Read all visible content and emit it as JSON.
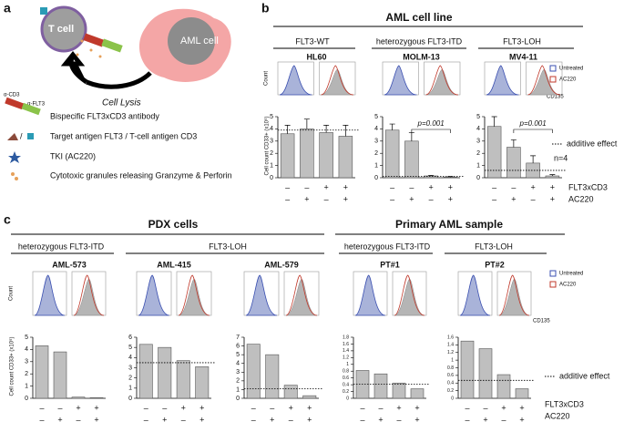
{
  "panel_labels": [
    "a",
    "b",
    "c"
  ],
  "diagram": {
    "t_cell": "T cell",
    "aml_cell": "AML cell",
    "lysis": "Cell Lysis",
    "anti_cd3": "α-CD3",
    "anti_flt3": "α-FLT3",
    "separator": "/",
    "legend": [
      "Bispecific FLT3xCD3 antibody",
      "Target antigen FLT3 / T-cell antigen CD3",
      "TKI (AC220)",
      "Cytotoxic granules releasing Granzyme & Perforin"
    ]
  },
  "panel_b": {
    "title": "AML cell line",
    "groups": [
      "FLT3-WT",
      "heterozygous FLT3-ITD",
      "FLT3-LOH"
    ],
    "untreated": "Untreated",
    "treated": "AC220",
    "count_label": "Count",
    "marker_label": "CD135",
    "y_label": "Cell count CD33+ (x10⁵)",
    "additive_label": "additive effect",
    "n": "n=4"
  },
  "panel_c": {
    "titles": [
      "PDX cells",
      "Primary AML sample"
    ],
    "groups": [
      "heterozygous FLT3-ITD",
      "FLT3-LOH",
      "heterozygous FLT3-ITD",
      "FLT3-LOH"
    ],
    "untreated": "Untreated",
    "treated": "AC220",
    "count_label": "Count",
    "marker_label": "CD135",
    "y_label": "Cell count CD33+ (x10⁵)",
    "additive_label": "additive effect"
  },
  "treatments": [
    {
      "label": "FLT3xCD3",
      "signs": [
        "–",
        "–",
        "+",
        "+"
      ]
    },
    {
      "label": "AC220",
      "signs": [
        "–",
        "+",
        "–",
        "+"
      ]
    }
  ],
  "chart_data": [
    {
      "type": "bar",
      "title": "HL60",
      "values": [
        3.6,
        4.0,
        3.7,
        3.4
      ],
      "errors": [
        0.7,
        0.8,
        0.6,
        0.9
      ],
      "additive_effect": 3.9,
      "ylim": [
        0,
        5
      ],
      "yticks": [
        0,
        1,
        2,
        3,
        4,
        5
      ],
      "color": "#bfbfbf"
    },
    {
      "type": "bar",
      "title": "MOLM-13",
      "values": [
        3.9,
        3.0,
        0.15,
        0.05
      ],
      "errors": [
        0.5,
        0.7,
        0.05,
        0.05
      ],
      "additive_effect": 0.1,
      "p_value": "p=0.001",
      "ylim": [
        0,
        5
      ],
      "yticks": [
        0,
        1,
        2,
        3,
        4,
        5
      ],
      "color": "#bfbfbf"
    },
    {
      "type": "bar",
      "title": "MV4-11",
      "values": [
        4.2,
        2.5,
        1.2,
        0.15
      ],
      "errors": [
        0.8,
        0.6,
        0.6,
        0.1
      ],
      "additive_effect": 0.6,
      "p_value": "p=0.001",
      "ylim": [
        0,
        5
      ],
      "yticks": [
        0,
        1,
        2,
        3,
        4,
        5
      ],
      "color": "#bfbfbf"
    },
    {
      "type": "bar",
      "title": "AML-573",
      "values": [
        4.3,
        3.8,
        0.1,
        0.05
      ],
      "ylim": [
        0,
        5
      ],
      "yticks": [
        0,
        1,
        2,
        3,
        4,
        5
      ],
      "color": "#bfbfbf"
    },
    {
      "type": "bar",
      "title": "AML-415",
      "values": [
        5.3,
        5.0,
        3.7,
        3.1
      ],
      "additive_effect": 3.5,
      "ylim": [
        0,
        6
      ],
      "yticks": [
        0,
        1,
        2,
        3,
        4,
        5,
        6
      ],
      "color": "#bfbfbf"
    },
    {
      "type": "bar",
      "title": "AML-579",
      "values": [
        6.2,
        5.0,
        1.5,
        0.3
      ],
      "additive_effect": 1.1,
      "ylim": [
        0,
        7
      ],
      "yticks": [
        0,
        1,
        2,
        3,
        4,
        5,
        6,
        7
      ],
      "color": "#bfbfbf"
    },
    {
      "type": "bar",
      "title": "PT#1",
      "values": [
        0.82,
        0.72,
        0.45,
        0.28
      ],
      "additive_effect": 0.42,
      "ylim": [
        0,
        1.8
      ],
      "yticks": [
        0,
        0.2,
        0.4,
        0.6,
        0.8,
        1,
        1.2,
        1.4,
        1.6,
        1.8
      ],
      "color": "#bfbfbf"
    },
    {
      "type": "bar",
      "title": "PT#2",
      "values": [
        1.5,
        1.3,
        0.62,
        0.25
      ],
      "additive_effect": 0.47,
      "ylim": [
        0,
        1.6
      ],
      "yticks": [
        0,
        0.2,
        0.4,
        0.6,
        0.8,
        1,
        1.2,
        1.4,
        1.6
      ],
      "color": "#bfbfbf"
    }
  ]
}
